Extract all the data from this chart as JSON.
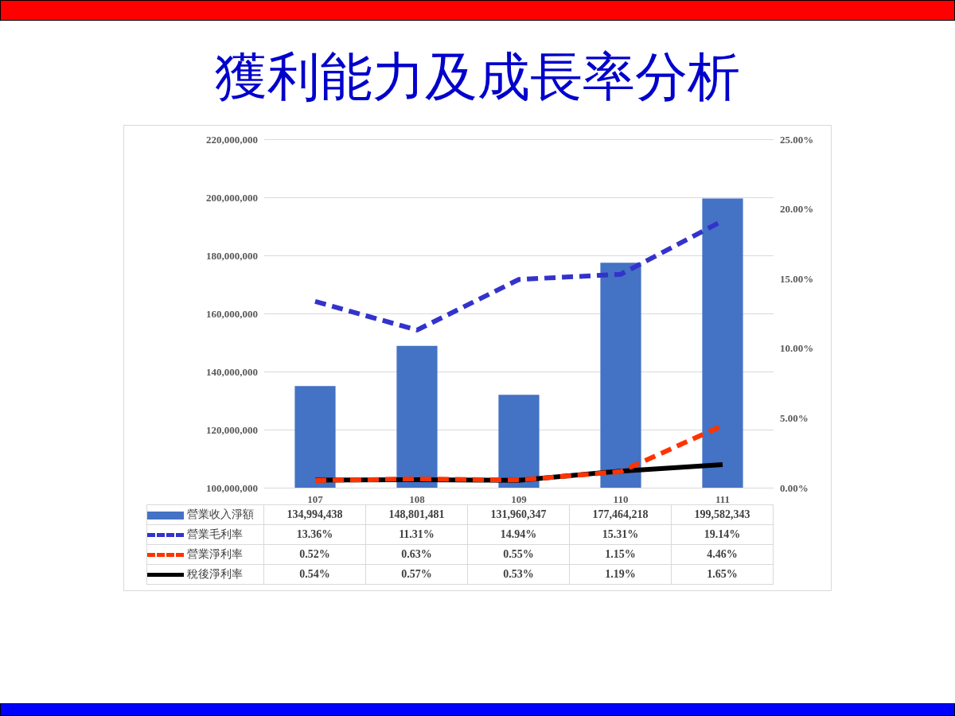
{
  "chart_data": {
    "type": "bar",
    "title": "獲利能力及成長率分析",
    "categories": [
      "107",
      "108",
      "109",
      "110",
      "111"
    ],
    "series": [
      {
        "name": "營業收入淨額",
        "color": "#4472c4",
        "values": [
          134994438,
          148801481,
          131960347,
          177464218,
          199582343
        ],
        "value_labels": [
          "134,994,438",
          "148,801,481",
          "131,960,347",
          "177,464,218",
          "199,582,343"
        ]
      },
      {
        "name": "營業毛利率",
        "type": "line",
        "axis": "y2",
        "color": "#3333cc",
        "line_style": "dashed",
        "values": [
          13.36,
          11.31,
          14.94,
          15.31,
          19.14
        ],
        "value_labels": [
          "13.36%",
          "11.31%",
          "14.94%",
          "15.31%",
          "19.14%"
        ]
      },
      {
        "name": "營業淨利率",
        "type": "line",
        "axis": "y2",
        "color": "#ff3300",
        "line_style": "dashed",
        "values": [
          0.52,
          0.63,
          0.55,
          1.15,
          4.46
        ],
        "value_labels": [
          "0.52%",
          "0.63%",
          "0.55%",
          "1.15%",
          "4.46%"
        ]
      },
      {
        "name": "稅後淨利率",
        "type": "line",
        "axis": "y2",
        "color": "#000000",
        "line_style": "solid",
        "values": [
          0.54,
          0.57,
          0.53,
          1.19,
          1.65
        ],
        "value_labels": [
          "0.54%",
          "0.57%",
          "0.53%",
          "1.19%",
          "1.65%"
        ]
      }
    ],
    "ylim": [
      100000000,
      220000000
    ],
    "yticks": [
      {
        "value": 100000000,
        "label": "100,000,000"
      },
      {
        "value": 120000000,
        "label": "120,000,000"
      },
      {
        "value": 140000000,
        "label": "140,000,000"
      },
      {
        "value": 160000000,
        "label": "160,000,000"
      },
      {
        "value": 180000000,
        "label": "180,000,000"
      },
      {
        "value": 200000000,
        "label": "200,000,000"
      },
      {
        "value": 220000000,
        "label": "220,000,000"
      }
    ],
    "y2lim": [
      0,
      25
    ],
    "y2ticks": [
      {
        "value": 0,
        "label": "0.00%"
      },
      {
        "value": 5,
        "label": "5.00%"
      },
      {
        "value": 10,
        "label": "10.00%"
      },
      {
        "value": 15,
        "label": "15.00%"
      },
      {
        "value": 20,
        "label": "20.00%"
      },
      {
        "value": 25,
        "label": "25.00%"
      }
    ],
    "grid": "y",
    "legend": "bottom",
    "marker": "none"
  }
}
